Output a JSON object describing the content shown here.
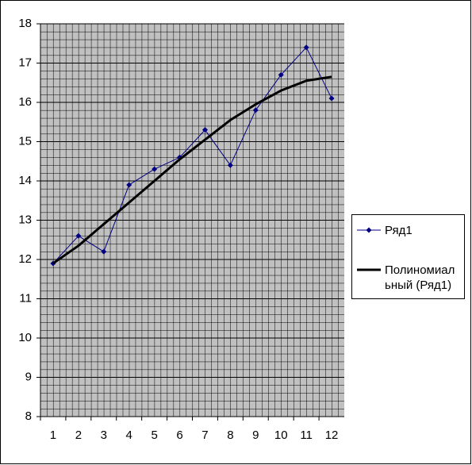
{
  "chart_data": {
    "type": "line",
    "categories": [
      "1",
      "2",
      "3",
      "4",
      "5",
      "6",
      "7",
      "8",
      "9",
      "10",
      "11",
      "12"
    ],
    "series": [
      {
        "name": "Ряд1",
        "color": "#000080",
        "marker": "diamond",
        "values": [
          11.9,
          12.6,
          12.2,
          13.9,
          14.3,
          14.6,
          15.3,
          14.4,
          15.8,
          16.7,
          17.4,
          16.1
        ]
      },
      {
        "name": "Полиномиальный (Ряд1)",
        "color": "#000000",
        "values": [
          11.9,
          12.35,
          12.9,
          13.45,
          14.0,
          14.55,
          15.05,
          15.55,
          15.95,
          16.3,
          16.55,
          16.65
        ]
      }
    ],
    "ylim": [
      8,
      18
    ],
    "yticks": [
      8,
      9,
      10,
      11,
      12,
      13,
      14,
      15,
      16,
      17,
      18
    ],
    "grid": true,
    "plot_background": "#c0c0c0",
    "legend": "right"
  }
}
